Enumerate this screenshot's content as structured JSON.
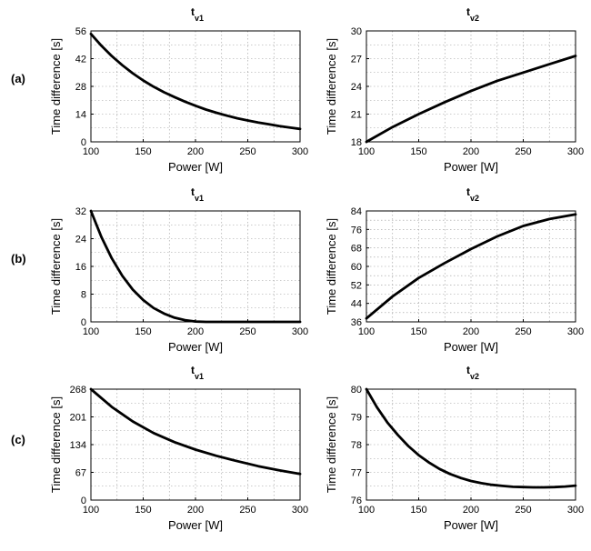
{
  "row_labels": [
    "(a)",
    "(b)",
    "(c)"
  ],
  "chart_data": [
    {
      "type": "line",
      "row": "(a)",
      "title_main": "t",
      "title_sub": "v1",
      "xlabel": "Power [W]",
      "ylabel": "Time difference [s]",
      "xlim": [
        100,
        300
      ],
      "ylim": [
        0,
        56
      ],
      "xticks": [
        100,
        150,
        200,
        250,
        300
      ],
      "yticks": [
        0,
        14,
        28,
        42,
        56
      ],
      "grid": true,
      "series": [
        {
          "x": [
            100,
            110,
            120,
            130,
            140,
            150,
            160,
            170,
            180,
            190,
            200,
            210,
            220,
            230,
            240,
            250,
            260,
            270,
            280,
            290,
            300
          ],
          "y": [
            54.5,
            48.5,
            43.3,
            38.7,
            34.6,
            31.0,
            27.8,
            25.0,
            22.6,
            20.3,
            18.2,
            16.3,
            14.7,
            13.2,
            11.9,
            10.8,
            9.8,
            8.9,
            8.0,
            7.2,
            6.5
          ]
        }
      ]
    },
    {
      "type": "line",
      "row": "(a)",
      "title_main": "t",
      "title_sub": "v2",
      "xlabel": "Power [W]",
      "ylabel": "Time difference [s]",
      "xlim": [
        100,
        300
      ],
      "ylim": [
        18,
        30
      ],
      "xticks": [
        100,
        150,
        200,
        250,
        300
      ],
      "yticks": [
        18,
        21,
        24,
        27,
        30
      ],
      "grid": true,
      "series": [
        {
          "x": [
            100,
            125,
            150,
            175,
            200,
            225,
            250,
            275,
            300
          ],
          "y": [
            18.0,
            19.6,
            21.0,
            22.3,
            23.5,
            24.6,
            25.5,
            26.4,
            27.3
          ]
        }
      ]
    },
    {
      "type": "line",
      "row": "(b)",
      "title_main": "t",
      "title_sub": "v1",
      "xlabel": "Power [W]",
      "ylabel": "Time difference [s]",
      "xlim": [
        100,
        300
      ],
      "ylim": [
        0,
        32
      ],
      "xticks": [
        100,
        150,
        200,
        250,
        300
      ],
      "yticks": [
        0,
        8,
        16,
        24,
        32
      ],
      "grid": true,
      "series": [
        {
          "x": [
            100,
            110,
            120,
            130,
            140,
            150,
            160,
            170,
            180,
            190,
            200,
            210,
            220,
            250,
            300
          ],
          "y": [
            32.0,
            24.5,
            18.3,
            13.3,
            9.3,
            6.3,
            4.0,
            2.4,
            1.2,
            0.5,
            0.1,
            0.0,
            0.0,
            0.0,
            0.0
          ]
        }
      ]
    },
    {
      "type": "line",
      "row": "(b)",
      "title_main": "t",
      "title_sub": "v2",
      "xlabel": "Power [W]",
      "ylabel": "Time difference [s]",
      "xlim": [
        100,
        300
      ],
      "ylim": [
        36,
        84
      ],
      "xticks": [
        100,
        150,
        200,
        250,
        300
      ],
      "yticks": [
        36,
        44,
        52,
        60,
        68,
        76,
        84
      ],
      "grid": true,
      "series": [
        {
          "x": [
            100,
            125,
            150,
            175,
            200,
            225,
            250,
            275,
            300
          ],
          "y": [
            37.5,
            47.0,
            55.0,
            61.5,
            67.5,
            73.0,
            77.5,
            80.5,
            82.5
          ]
        }
      ]
    },
    {
      "type": "line",
      "row": "(c)",
      "title_main": "t",
      "title_sub": "v1",
      "xlabel": "Power [W]",
      "ylabel": "Time difference [s]",
      "xlim": [
        100,
        300
      ],
      "ylim": [
        0,
        268
      ],
      "xticks": [
        100,
        150,
        200,
        250,
        300
      ],
      "yticks": [
        0,
        67,
        134,
        201,
        268
      ],
      "grid": true,
      "series": [
        {
          "x": [
            100,
            120,
            140,
            160,
            180,
            200,
            220,
            240,
            260,
            280,
            300
          ],
          "y": [
            268,
            225,
            190,
            162,
            140,
            122,
            107,
            94,
            82,
            72,
            63
          ]
        }
      ]
    },
    {
      "type": "line",
      "row": "(c)",
      "title_main": "t",
      "title_sub": "v2",
      "xlabel": "Power [W]",
      "ylabel": "Time difference [s]",
      "xlim": [
        100,
        300
      ],
      "ylim": [
        76,
        80
      ],
      "xticks": [
        100,
        150,
        200,
        250,
        300
      ],
      "yticks": [
        76,
        77,
        78,
        79,
        80
      ],
      "grid": true,
      "series": [
        {
          "x": [
            100,
            110,
            120,
            130,
            140,
            150,
            160,
            170,
            180,
            190,
            200,
            210,
            220,
            230,
            240,
            250,
            260,
            270,
            280,
            290,
            300
          ],
          "y": [
            80.0,
            79.35,
            78.8,
            78.35,
            77.95,
            77.62,
            77.35,
            77.12,
            76.94,
            76.8,
            76.69,
            76.61,
            76.55,
            76.51,
            76.48,
            76.47,
            76.46,
            76.46,
            76.47,
            76.49,
            76.52
          ]
        }
      ]
    }
  ]
}
